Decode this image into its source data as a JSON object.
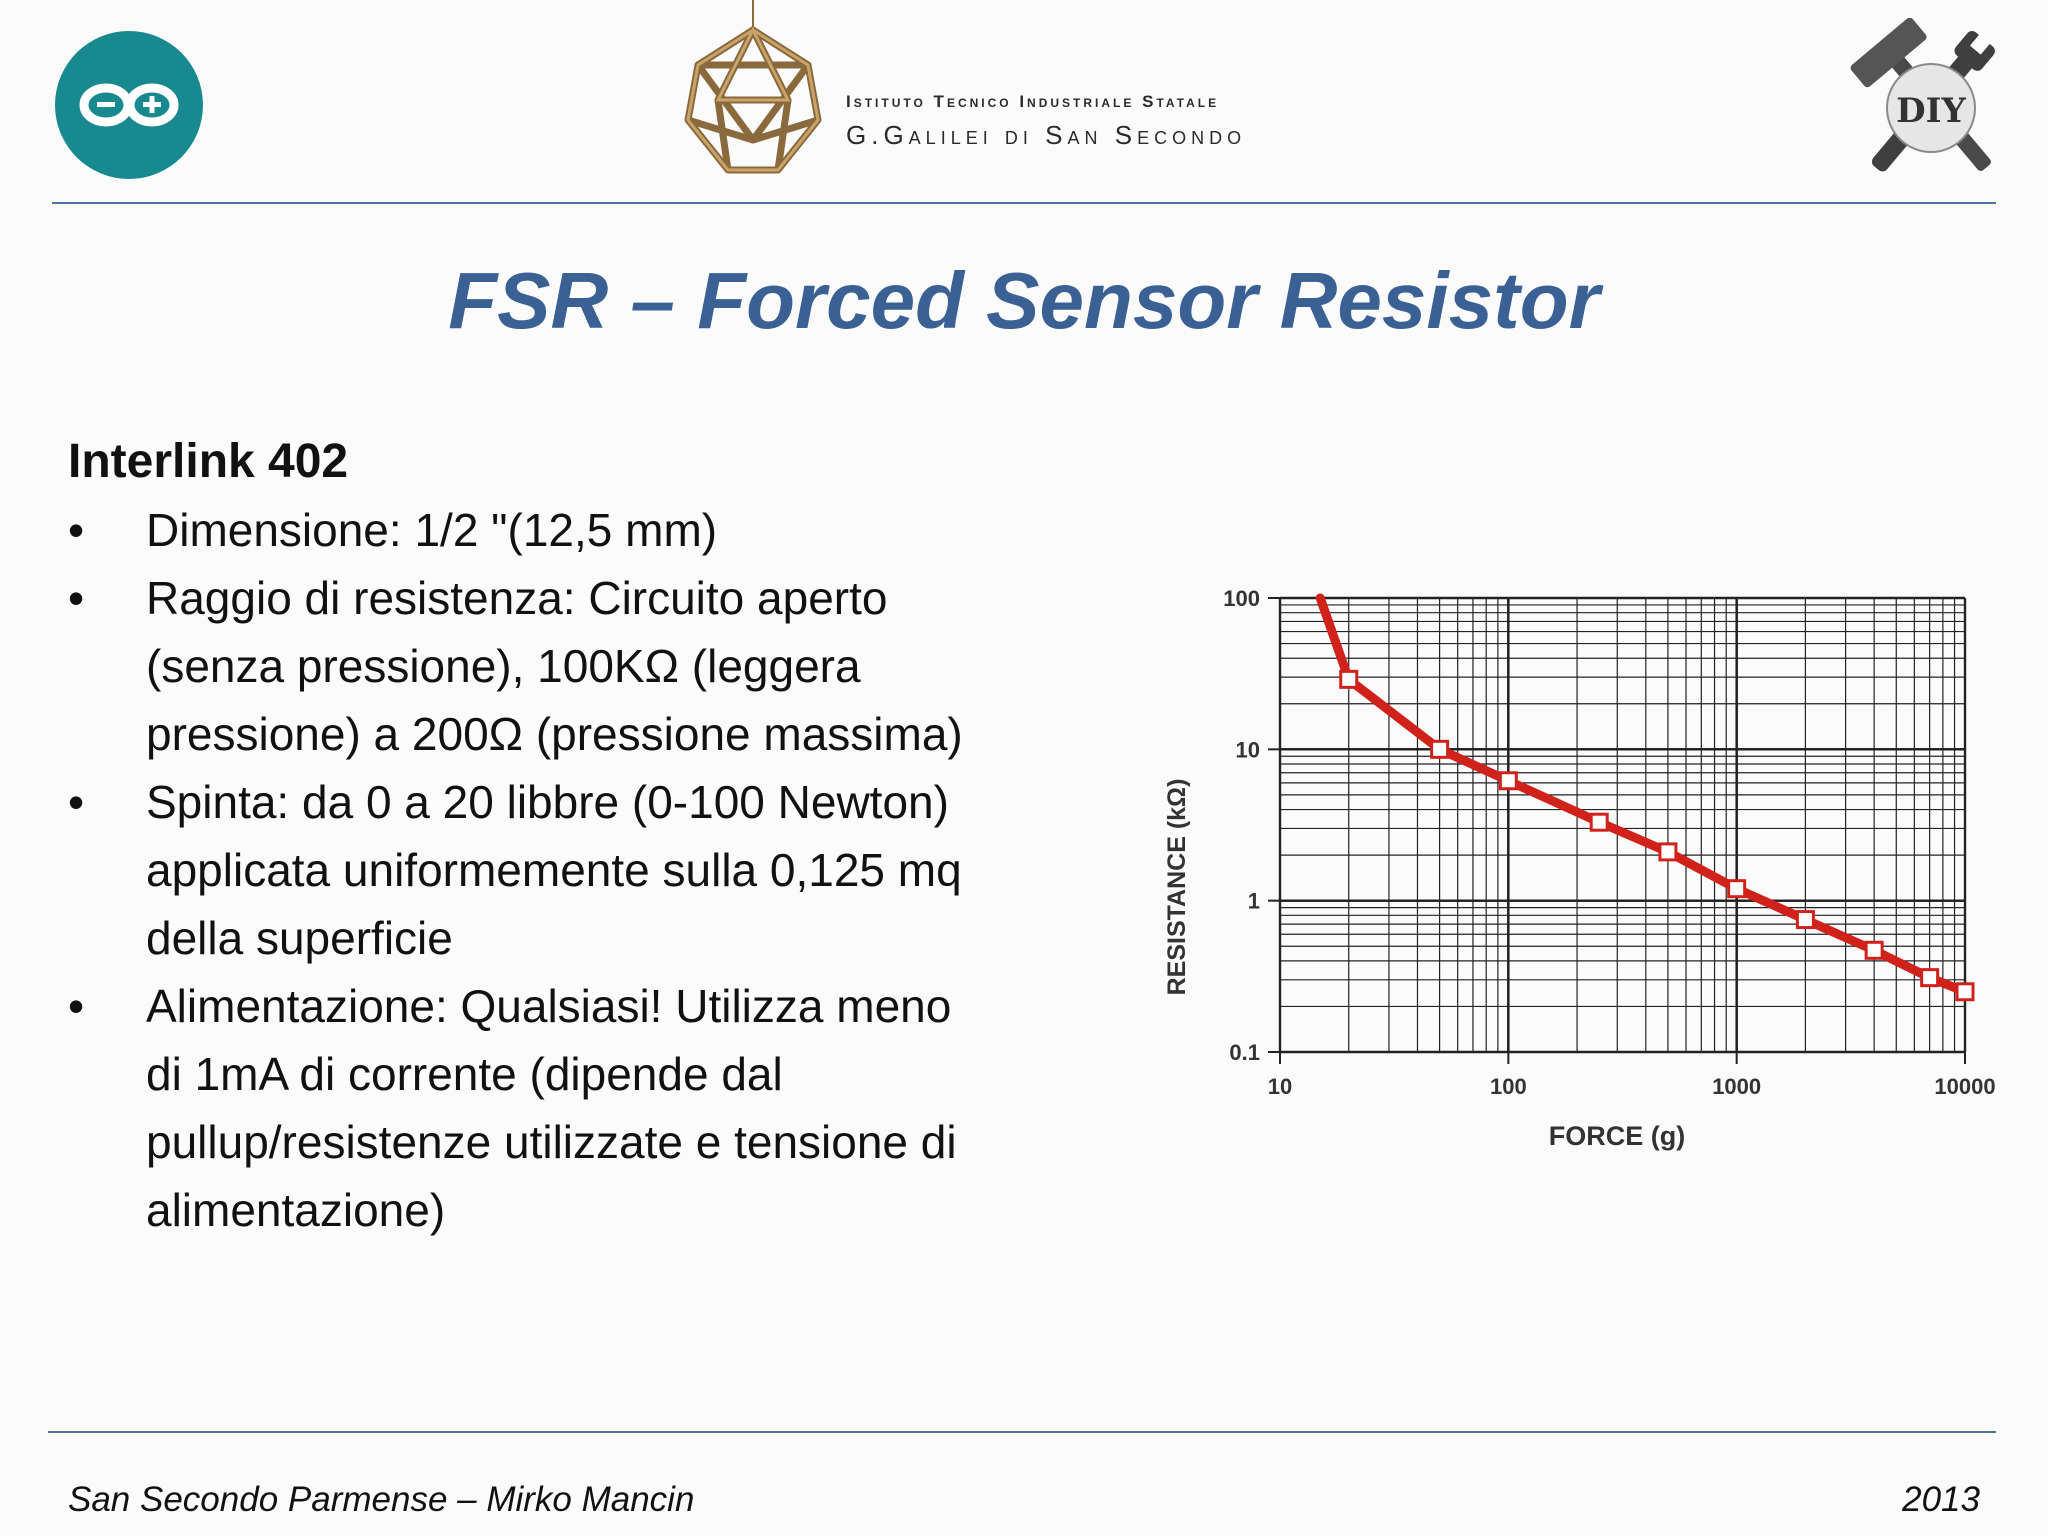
{
  "header": {
    "school_line1": "Istituto Tecnico Industriale Statale",
    "school_line2": "G.Galilei di San Secondo",
    "diy_logo_text": "DIY"
  },
  "title": "FSR – Forced Sensor Resistor",
  "content": {
    "heading": "Interlink 402",
    "bullets": [
      {
        "lines": [
          "Dimensione: 1/2 \"(12,5 mm)"
        ]
      },
      {
        "lines": [
          "Raggio di resistenza: Circuito aperto",
          "(senza pressione), 100KΩ (leggera",
          "pressione) a 200Ω (pressione massima)"
        ]
      },
      {
        "lines": [
          "Spinta: da 0 a 20 libbre (0-100 Newton)",
          "applicata uniformemente sulla 0,125 mq",
          "della superficie"
        ]
      },
      {
        "lines": [
          "Alimentazione: Qualsiasi! Utilizza meno",
          "di 1mA di corrente (dipende dal",
          "pullup/resistenze utilizzate e tensione di",
          "alimentazione)"
        ]
      }
    ]
  },
  "chart_data": {
    "type": "line",
    "xlabel": "FORCE (g)",
    "ylabel": "RESISTANCE (kΩ)",
    "xscale": "log",
    "yscale": "log",
    "xlim": [
      10,
      10000
    ],
    "ylim": [
      0.1,
      100
    ],
    "x_ticks": [
      "10",
      "100",
      "1000",
      "10000"
    ],
    "y_ticks": [
      "0.1",
      "1",
      "10",
      "100"
    ],
    "grid": true,
    "line_color": "#d0211b",
    "curve_start": {
      "x": 15,
      "y": 100
    },
    "series": [
      {
        "x": [
          20,
          50,
          100,
          250,
          500,
          1000,
          2000,
          4000,
          7000,
          10000
        ],
        "y": [
          29,
          10,
          6.2,
          3.3,
          2.1,
          1.2,
          0.75,
          0.47,
          0.31,
          0.25
        ]
      }
    ]
  },
  "footer": {
    "left": "San Secondo Parmense – Mirko Mancin",
    "right": "2013"
  }
}
